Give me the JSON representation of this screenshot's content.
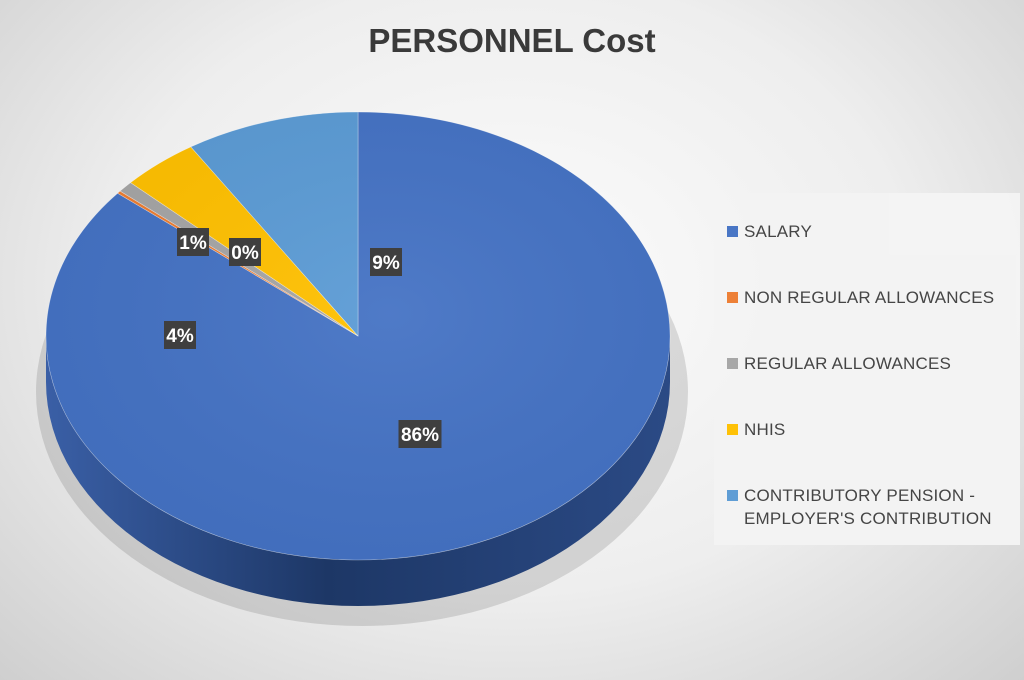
{
  "chart_data": {
    "type": "pie",
    "title": "PERSONNEL Cost",
    "legend_position": "right",
    "slices": [
      {
        "name": "SALARY",
        "value": 86,
        "label": "86%",
        "color": "#4472C4"
      },
      {
        "name": "NON REGULAR ALLOWANCES",
        "value": 0.2,
        "label": "0%",
        "color": "#ED7D31"
      },
      {
        "name": "REGULAR ALLOWANCES",
        "value": 0.8,
        "label": "1%",
        "color": "#A5A5A5"
      },
      {
        "name": "NHIS",
        "value": 4,
        "label": "4%",
        "color": "#FFC000"
      },
      {
        "name": "CONTRIBUTORY PENSION - EMPLOYER'S CONTRIBUTION",
        "value": 9,
        "label": "9%",
        "color": "#5B9BD5"
      }
    ]
  }
}
